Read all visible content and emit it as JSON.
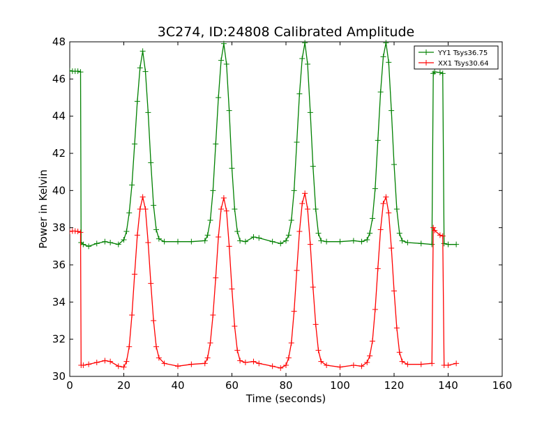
{
  "chart_data": {
    "type": "line",
    "title": "3C274, ID:24808 Calibrated Amplitude",
    "xlabel": "Time (seconds)",
    "ylabel": "Power in Kelvin",
    "xlim": [
      0,
      160
    ],
    "ylim": [
      30,
      48
    ],
    "xticks": [
      "0",
      "20",
      "40",
      "60",
      "80",
      "100",
      "120",
      "140",
      "160"
    ],
    "yticks": [
      "30",
      "32",
      "34",
      "36",
      "38",
      "40",
      "42",
      "44",
      "46",
      "48"
    ],
    "grid": false,
    "legend_position": "top-right",
    "marker": "+",
    "series": [
      {
        "name": "YY1 Tsys36.75",
        "color": "#008000",
        "x": [
          0,
          1,
          2,
          3,
          4,
          4.2,
          5,
          7,
          10,
          13,
          15,
          18,
          20,
          21,
          22,
          23,
          24,
          25,
          26,
          27,
          28,
          29,
          30,
          31,
          32,
          33,
          35,
          40,
          45,
          50,
          51,
          52,
          53,
          54,
          55,
          56,
          57,
          58,
          59,
          60,
          61,
          62,
          63,
          65,
          68,
          70,
          75,
          78,
          80,
          81,
          82,
          83,
          84,
          85,
          86,
          87,
          88,
          89,
          90,
          91,
          92,
          93,
          95,
          100,
          105,
          108,
          110,
          111,
          112,
          113,
          114,
          115,
          116,
          117,
          118,
          119,
          120,
          121,
          122,
          123,
          125,
          130,
          134,
          134.5,
          135,
          137,
          138,
          138.5,
          140,
          143
        ],
        "y": [
          46.45,
          46.42,
          46.42,
          46.42,
          46.38,
          37.2,
          37.1,
          37.0,
          37.15,
          37.25,
          37.2,
          37.1,
          37.35,
          37.8,
          38.8,
          40.3,
          42.5,
          44.8,
          46.6,
          47.5,
          46.4,
          44.2,
          41.5,
          39.2,
          37.9,
          37.4,
          37.25,
          37.25,
          37.25,
          37.3,
          37.6,
          38.4,
          40.0,
          42.5,
          45.0,
          47.0,
          47.9,
          46.8,
          44.3,
          41.2,
          39.0,
          37.8,
          37.3,
          37.25,
          37.5,
          37.45,
          37.25,
          37.15,
          37.3,
          37.6,
          38.4,
          40.0,
          42.6,
          45.2,
          47.1,
          47.95,
          46.8,
          44.2,
          41.3,
          39.0,
          37.7,
          37.3,
          37.25,
          37.25,
          37.3,
          37.25,
          37.35,
          37.7,
          38.5,
          40.1,
          42.7,
          45.3,
          47.2,
          47.95,
          46.9,
          44.3,
          41.4,
          39.0,
          37.7,
          37.3,
          37.2,
          37.15,
          37.1,
          46.3,
          46.38,
          46.35,
          46.3,
          37.15,
          37.1,
          37.1
        ]
      },
      {
        "name": "XX1 Tsys30.64",
        "color": "#ff0000",
        "x": [
          0,
          1,
          2,
          3,
          4,
          4.2,
          5,
          7,
          10,
          13,
          15,
          18,
          20,
          21,
          22,
          23,
          24,
          25,
          26,
          27,
          28,
          29,
          30,
          31,
          32,
          33,
          35,
          40,
          45,
          50,
          51,
          52,
          53,
          54,
          55,
          56,
          57,
          58,
          59,
          60,
          61,
          62,
          63,
          65,
          68,
          70,
          75,
          78,
          80,
          81,
          82,
          83,
          84,
          85,
          86,
          87,
          88,
          89,
          90,
          91,
          92,
          93,
          95,
          100,
          105,
          108,
          110,
          111,
          112,
          113,
          114,
          115,
          116,
          117,
          118,
          119,
          120,
          121,
          122,
          123,
          125,
          130,
          134,
          134.5,
          135,
          137,
          138,
          138.5,
          140,
          143
        ],
        "y": [
          37.8,
          37.82,
          37.82,
          37.8,
          37.75,
          30.6,
          30.6,
          30.65,
          30.75,
          30.85,
          30.8,
          30.55,
          30.5,
          30.8,
          31.6,
          33.3,
          35.5,
          37.6,
          39.0,
          39.65,
          39.0,
          37.2,
          35.0,
          33.0,
          31.6,
          31.0,
          30.7,
          30.55,
          30.65,
          30.7,
          31.0,
          31.8,
          33.3,
          35.3,
          37.5,
          39.0,
          39.6,
          38.9,
          37.0,
          34.7,
          32.7,
          31.4,
          30.85,
          30.75,
          30.8,
          30.7,
          30.55,
          30.45,
          30.6,
          31.0,
          31.8,
          33.5,
          35.7,
          37.8,
          39.3,
          39.85,
          39.0,
          37.1,
          34.8,
          32.8,
          31.4,
          30.8,
          30.6,
          30.5,
          30.6,
          30.55,
          30.75,
          31.1,
          31.9,
          33.6,
          35.8,
          37.9,
          39.3,
          39.65,
          38.8,
          36.9,
          34.6,
          32.6,
          31.3,
          30.8,
          30.65,
          30.65,
          30.7,
          38.0,
          37.85,
          37.6,
          37.55,
          30.6,
          30.6,
          30.7
        ]
      }
    ]
  }
}
